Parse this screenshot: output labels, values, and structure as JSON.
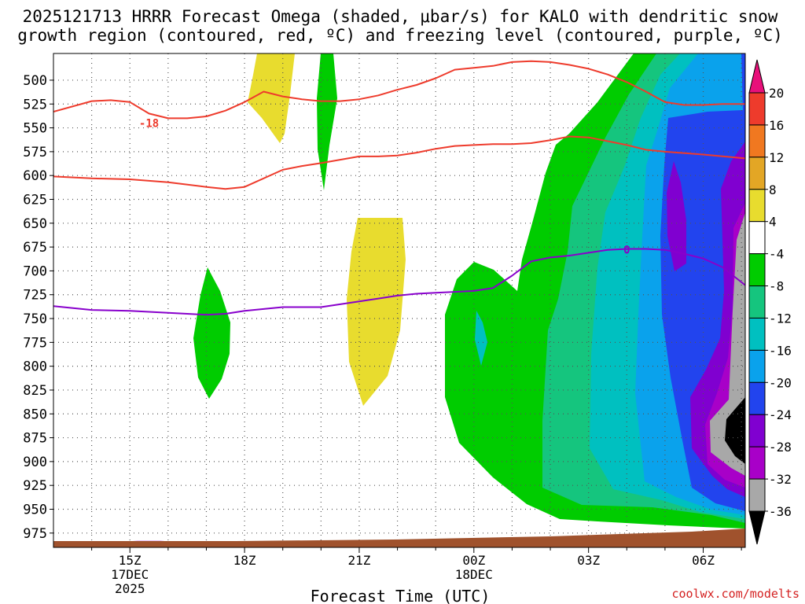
{
  "chart_data": {
    "type": "heatmap",
    "title_line1": "2025121713 HRRR Forecast Omega (shaded, μbar/s) for KALO with dendritic snow",
    "title_line2": "growth region (contoured, red, ºC) and freezing level (contoured, purple, ºC)",
    "xlabel": "Forecast Time (UTC)",
    "credit": "coolwx.com/modelts",
    "x_ticks": [
      {
        "hour": 15,
        "label": "15Z",
        "sub1": "17DEC",
        "sub2": "2025"
      },
      {
        "hour": 18,
        "label": "18Z",
        "sub1": "",
        "sub2": ""
      },
      {
        "hour": 21,
        "label": "21Z",
        "sub1": "",
        "sub2": ""
      },
      {
        "hour": 24,
        "label": "00Z",
        "sub1": "18DEC",
        "sub2": ""
      },
      {
        "hour": 27,
        "label": "03Z",
        "sub1": "",
        "sub2": ""
      },
      {
        "hour": 30,
        "label": "06Z",
        "sub1": "",
        "sub2": ""
      }
    ],
    "xlim": [
      13,
      31.1
    ],
    "y_ticks": [
      500,
      525,
      550,
      575,
      600,
      625,
      650,
      675,
      700,
      725,
      750,
      775,
      800,
      825,
      850,
      875,
      900,
      925,
      950,
      975
    ],
    "ylim": [
      472,
      990
    ],
    "colorbar_labels": [
      "20",
      "16",
      "12",
      "8",
      "4",
      "-4",
      "-8",
      "-12",
      "-16",
      "-20",
      "-24",
      "-28",
      "-32",
      "-36"
    ],
    "colorbar_colors": [
      "#e8107a",
      "#ee3b2c",
      "#f07820",
      "#e3a625",
      "#e8dc2e",
      "#ffffff",
      "#00cc00",
      "#15c57e",
      "#00c0c0",
      "#0aa2ec",
      "#2244ee",
      "#8000d0",
      "#a800c8",
      "#a8a8a8",
      "#000000"
    ],
    "contour_labels": [
      {
        "text": "-18",
        "hour": 15.5,
        "pres": 545,
        "color": "#ee3b2c"
      },
      {
        "text": "0",
        "hour": 28.0,
        "pres": 678,
        "color": "#8800cc"
      }
    ],
    "series": [
      {
        "color": "#ee3b2c",
        "x": [
          13,
          14,
          14.5,
          15,
          15.5,
          16,
          16.5,
          17,
          17.5,
          18,
          18.5,
          19,
          19.5,
          20,
          20.5,
          21,
          21.5,
          22,
          22.5,
          23,
          23.5,
          24,
          24.5,
          25,
          25.5,
          26,
          26.5,
          27,
          27.5,
          28,
          28.5,
          29,
          29.5,
          30,
          30.5,
          31.1
        ],
        "y": [
          533,
          522,
          521,
          523,
          535,
          540,
          540,
          538,
          532,
          523,
          512,
          517,
          520,
          522,
          522,
          520,
          516,
          510,
          505,
          498,
          489,
          487,
          485,
          481,
          480,
          481,
          484,
          488,
          494,
          502,
          512,
          523,
          526,
          526,
          525,
          525
        ]
      },
      {
        "color": "#ee3b2c",
        "x": [
          13,
          14,
          15,
          16,
          17,
          17.5,
          18,
          19,
          19.5,
          20,
          21,
          21.5,
          22,
          22.5,
          23,
          23.5,
          24,
          24.5,
          25,
          25.5,
          26,
          26.5,
          27,
          27.5,
          28,
          28.5,
          29,
          30,
          31.1
        ],
        "y": [
          601,
          603,
          604,
          607,
          612,
          614,
          612,
          594,
          590,
          587,
          580,
          580,
          579,
          576,
          572,
          569,
          568,
          567,
          567,
          566,
          563,
          559,
          560,
          564,
          568,
          573,
          575,
          578,
          582
        ]
      },
      {
        "color": "#8800cc",
        "x": [
          13,
          14,
          15,
          16,
          16.5,
          17,
          17.5,
          18,
          19,
          20,
          21,
          21.5,
          22,
          22.5,
          23,
          23.5,
          24,
          24.5,
          25,
          25.5,
          26,
          26.5,
          27,
          27.5,
          28,
          28.5,
          29,
          29.5,
          30,
          30.5,
          31.1
        ],
        "y": [
          737,
          741,
          742,
          744,
          745,
          746,
          745,
          742,
          738,
          738,
          732,
          729,
          726,
          724,
          723,
          722,
          721,
          718,
          705,
          690,
          686,
          684,
          681,
          678,
          677,
          677,
          678,
          682,
          687,
          696,
          715
        ]
      },
      {
        "color": "#8800cc",
        "x": [
          14.1,
          14.6,
          15.2,
          15.8,
          16.3
        ],
        "y": [
          986,
          985,
          984,
          984,
          985
        ]
      }
    ]
  }
}
